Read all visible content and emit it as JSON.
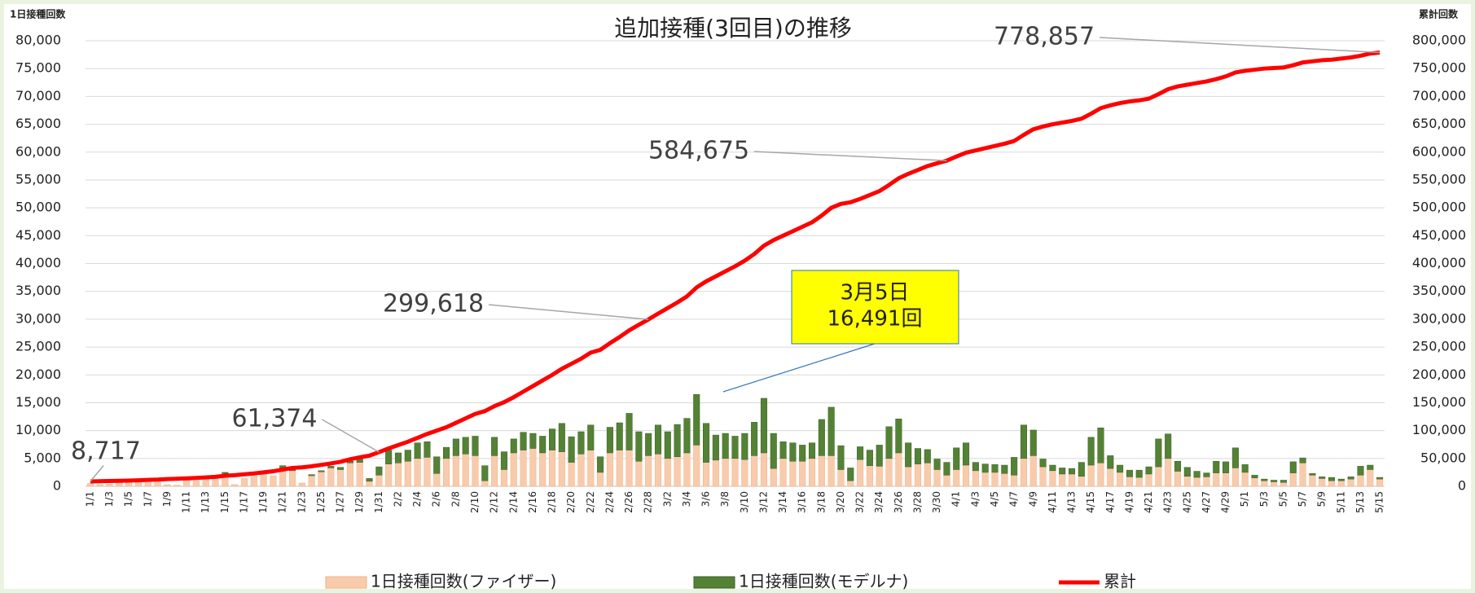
{
  "chart_data": {
    "type": "bar",
    "title": "追加接種(3回目)の推移",
    "y_label": "1日接種回数",
    "y2_label": "累計回数",
    "annotation": [
      "3月5日",
      "16,491回"
    ],
    "categories": [
      "1/1",
      null,
      "1/3",
      null,
      "1/5",
      null,
      "1/7",
      null,
      "1/9",
      null,
      "1/11",
      null,
      "1/13",
      null,
      "1/15",
      null,
      "1/17",
      null,
      "1/19",
      null,
      "1/21",
      null,
      "1/23",
      null,
      "1/25",
      null,
      "1/27",
      null,
      "1/29",
      null,
      "1/31",
      null,
      "2/2",
      null,
      "2/4",
      null,
      "2/6",
      null,
      "2/8",
      null,
      "2/10",
      null,
      "2/12",
      null,
      "2/14",
      null,
      "2/16",
      null,
      "2/18",
      null,
      "2/20",
      null,
      "2/22",
      null,
      "2/24",
      null,
      "2/26",
      null,
      "2/28",
      null,
      "3/2",
      null,
      "3/4",
      null,
      "3/6",
      null,
      "3/8",
      null,
      "3/10",
      null,
      "3/12",
      null,
      "3/14",
      null,
      "3/16",
      null,
      "3/18",
      null,
      "3/20",
      null,
      "3/22",
      null,
      "3/24",
      null,
      "3/26",
      null,
      "3/28",
      null,
      "3/30",
      null,
      "4/1",
      null,
      "4/3",
      null,
      "4/5",
      null,
      "4/7",
      null,
      "4/9",
      null,
      "4/11",
      null,
      "4/13",
      null,
      "4/15",
      null,
      "4/17",
      null,
      "4/19",
      null,
      "4/21",
      null,
      "4/23",
      null,
      "4/25",
      null,
      "4/27",
      null,
      "4/29",
      null,
      "5/1",
      null,
      "5/3",
      null,
      "5/5",
      null,
      "5/7",
      null,
      "5/9",
      null,
      "5/11",
      null,
      "5/13",
      null,
      "5/15"
    ],
    "series": [
      {
        "name": "1日接種回数(ファイザー)",
        "color": "#f8cbad",
        "values": [
          500,
          300,
          400,
          600,
          800,
          700,
          1000,
          900,
          300,
          200,
          1200,
          1000,
          1500,
          1800,
          2300,
          300,
          1400,
          1800,
          2200,
          1900,
          3200,
          2800,
          600,
          1900,
          2600,
          3300,
          3000,
          4200,
          4300,
          900,
          2000,
          4000,
          4200,
          4500,
          5000,
          5200,
          2300,
          5000,
          5500,
          5800,
          5500,
          1000,
          5500,
          3000,
          6000,
          6500,
          6800,
          6000,
          6500,
          6200,
          4300,
          5800,
          6500,
          2500,
          6000,
          6500,
          6500,
          4500,
          5500,
          5800,
          5000,
          5300,
          6000,
          7400,
          4300,
          4700,
          5000,
          5000,
          4800,
          5500,
          6000,
          3200,
          5000,
          4500,
          4500,
          5000,
          5500,
          5500,
          3000,
          1000,
          4800,
          3700,
          3600,
          5000,
          6000,
          3500,
          4000,
          4200,
          3000,
          2000,
          3000,
          3800,
          2800,
          2500,
          2500,
          2300,
          2000,
          5000,
          5500,
          3500,
          2800,
          2200,
          2200,
          1800,
          3800,
          4200,
          3200,
          2500,
          1700,
          1600,
          2200,
          3500,
          5000,
          2700,
          1800,
          1600,
          1700,
          2400,
          2400,
          3300,
          2500,
          1500,
          1000,
          800,
          700,
          2400,
          4200,
          2000,
          1400,
          1000,
          1000,
          1300,
          2000,
          3000,
          1300
        ]
      },
      {
        "name": "1日接種回数(モデルナ)",
        "color": "#548235",
        "values": [
          0,
          0,
          0,
          0,
          0,
          0,
          0,
          0,
          0,
          0,
          0,
          0,
          0,
          0,
          200,
          0,
          0,
          0,
          0,
          0,
          500,
          400,
          0,
          200,
          200,
          300,
          400,
          300,
          600,
          500,
          1500,
          2500,
          1800,
          2000,
          2800,
          2800,
          3000,
          2000,
          3000,
          3000,
          3500,
          2700,
          3300,
          3200,
          2500,
          3200,
          2700,
          3000,
          3800,
          5100,
          4600,
          4000,
          4500,
          2800,
          4600,
          4900,
          6600,
          5300,
          4000,
          5200,
          4800,
          5800,
          6200,
          9091,
          7000,
          4500,
          4500,
          4000,
          4700,
          6000,
          9800,
          6300,
          3000,
          3300,
          2900,
          2800,
          6500,
          8700,
          4300,
          2300,
          2300,
          2800,
          3800,
          5700,
          6100,
          4300,
          2800,
          2400,
          1900,
          2300,
          3900,
          4000,
          1500,
          1500,
          1400,
          1500,
          3200,
          6000,
          4600,
          1400,
          1000,
          1100,
          1000,
          2500,
          5000,
          6300,
          2300,
          1300,
          1200,
          1300,
          1300,
          5000,
          4400,
          1800,
          1600,
          1100,
          700,
          2100,
          2000,
          3600,
          1400,
          500,
          300,
          300,
          400,
          2000,
          900,
          300,
          300,
          600,
          300,
          400,
          1600,
          800,
          300
        ]
      },
      {
        "name": "累計",
        "color": "#ff0000",
        "axis": "y2",
        "values": [
          8717,
          9100,
          9500,
          9900,
          10300,
          10800,
          11500,
          12000,
          13000,
          13500,
          14300,
          15000,
          16000,
          17000,
          19000,
          20000,
          21500,
          23000,
          25000,
          27000,
          30000,
          33000,
          34000,
          36000,
          38500,
          41000,
          44000,
          48500,
          52000,
          55000,
          61374,
          68000,
          74000,
          80000,
          87000,
          94000,
          100000,
          106000,
          114000,
          122000,
          130000,
          135000,
          144000,
          151000,
          160000,
          170000,
          180000,
          190000,
          200000,
          211000,
          220000,
          229000,
          240000,
          245000,
          257000,
          268000,
          280000,
          290000,
          299618,
          310000,
          320000,
          330000,
          341000,
          357000,
          368000,
          377000,
          386000,
          395000,
          405000,
          417000,
          432000,
          442000,
          450000,
          458000,
          466000,
          474000,
          486000,
          500000,
          507000,
          510000,
          516000,
          523000,
          530000,
          541000,
          553000,
          561000,
          568000,
          575000,
          580000,
          584675,
          592000,
          599000,
          603000,
          607000,
          611000,
          615000,
          620000,
          631000,
          641000,
          646000,
          650000,
          653000,
          656000,
          660000,
          669000,
          679000,
          684000,
          688000,
          691000,
          693000,
          696000,
          704000,
          713000,
          718000,
          721000,
          724000,
          727000,
          731000,
          736000,
          743000,
          746000,
          748000,
          750000,
          751000,
          752000,
          756000,
          761000,
          763000,
          765000,
          766000,
          768000,
          770000,
          773000,
          777000,
          778857
        ],
        "value_labels": [
          "8,717",
          null,
          null,
          null,
          null,
          null,
          null,
          null,
          null,
          null,
          null,
          null,
          null,
          null,
          null,
          null,
          null,
          null,
          null,
          null,
          null,
          null,
          null,
          null,
          null,
          null,
          null,
          null,
          null,
          null,
          "61,374",
          null,
          null,
          null,
          null,
          null,
          null,
          null,
          null,
          null,
          null,
          null,
          null,
          null,
          null,
          null,
          null,
          null,
          null,
          null,
          null,
          null,
          null,
          null,
          null,
          null,
          null,
          null,
          "299,618",
          null,
          null,
          null,
          null,
          null,
          null,
          null,
          null,
          null,
          null,
          null,
          null,
          null,
          null,
          null,
          null,
          null,
          null,
          null,
          null,
          null,
          null,
          null,
          null,
          null,
          null,
          null,
          null,
          null,
          null,
          "584,675",
          null,
          null,
          null,
          null,
          null,
          null,
          null,
          null,
          null,
          null,
          null,
          null,
          null,
          null,
          null,
          null,
          null,
          null,
          null,
          null,
          null,
          null,
          null,
          null,
          null,
          null,
          null,
          null,
          null,
          null,
          null,
          null,
          null,
          null,
          null,
          null,
          null,
          null,
          null,
          null,
          null,
          null,
          null,
          null,
          "778,857"
        ]
      }
    ],
    "ylim": [
      0,
      80000
    ],
    "yticks": [
      0,
      {
        "value": 5000,
        "label": "5,000"
      },
      {
        "value": 10000,
        "label": "10,000"
      },
      {
        "value": 15000,
        "label": "15,000"
      },
      {
        "value": 20000,
        "label": "20,000"
      },
      {
        "value": 25000,
        "label": "25,000"
      },
      {
        "value": 30000,
        "label": "30,000"
      },
      {
        "value": 35000,
        "label": "35,000"
      },
      {
        "value": 40000,
        "label": "40,000"
      },
      {
        "value": 45000,
        "label": "45,000"
      },
      {
        "value": 50000,
        "label": "50,000"
      },
      {
        "value": 55000,
        "label": "55,000"
      },
      {
        "value": 60000,
        "label": "60,000"
      },
      {
        "value": 65000,
        "label": "65,000"
      },
      {
        "value": 70000,
        "label": "70,000"
      },
      {
        "value": 75000,
        "label": "75,000"
      },
      {
        "value": 80000,
        "label": "80,000"
      }
    ],
    "y2lim": [
      0,
      800000
    ],
    "y2ticks": [
      0,
      {
        "value": 50000,
        "label": "50,000"
      },
      {
        "value": 100000,
        "label": "100,000"
      },
      {
        "value": 150000,
        "label": "150,000"
      },
      {
        "value": 200000,
        "label": "200,000"
      },
      {
        "value": 250000,
        "label": "250,000"
      },
      {
        "value": 300000,
        "label": "300,000"
      },
      {
        "value": 350000,
        "label": "350,000"
      },
      {
        "value": 400000,
        "label": "400,000"
      },
      {
        "value": 450000,
        "label": "450,000"
      },
      {
        "value": 500000,
        "label": "500,000"
      },
      {
        "value": 550000,
        "label": "550,000"
      },
      {
        "value": 600000,
        "label": "600,000"
      },
      {
        "value": 650000,
        "label": "650,000"
      },
      {
        "value": 700000,
        "label": "700,000"
      },
      {
        "value": 750000,
        "label": "750,000"
      },
      {
        "value": 800000,
        "label": "800,000"
      }
    ],
    "grid": true
  }
}
